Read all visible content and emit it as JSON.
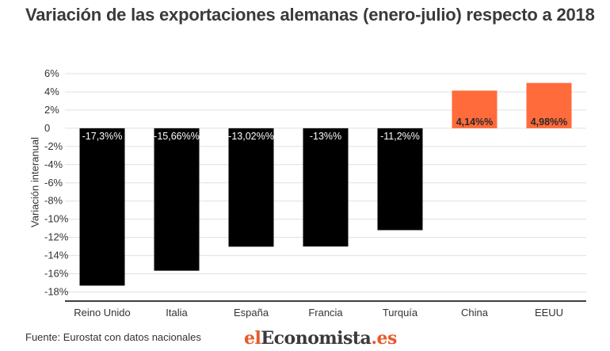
{
  "title": "Variación de las exportaciones alemanas (enero-julio) respecto a 2018",
  "source": "Fuente: Eurostat con datos nacionales",
  "logo": {
    "part1": "el",
    "part2": "Economista",
    "part3": ".es"
  },
  "colors": {
    "negative": "#000000",
    "positive": "#ff6b3b",
    "grid": "#e0e0e0",
    "axis": "#000000"
  },
  "chart_data": {
    "type": "bar",
    "categories": [
      "Reino Unido",
      "Italia",
      "España",
      "Francia",
      "Turquía",
      "China",
      "EEUU"
    ],
    "values": [
      -17.3,
      -15.66,
      -13.02,
      -13,
      -11.2,
      4.14,
      4.98
    ],
    "data_labels": [
      "-17,3%%",
      "-15,66%%",
      "-13,02%%",
      "-13%%",
      "-11,2%%",
      "4,14%%",
      "4,98%%"
    ],
    "ylabel": "Variación interanual",
    "xlabel": "",
    "ylim": [
      -19,
      6
    ],
    "yticks": [
      6,
      4,
      2,
      0,
      -2,
      -4,
      -6,
      -8,
      -10,
      -12,
      -14,
      -16,
      -18
    ],
    "ytick_labels": [
      "6%",
      "4%",
      "2%",
      "0",
      "-2%",
      "-4%",
      "-6%",
      "-8%",
      "-10%",
      "-12%",
      "-14%",
      "-16%",
      "-18%"
    ],
    "grid": true,
    "legend": "none"
  }
}
